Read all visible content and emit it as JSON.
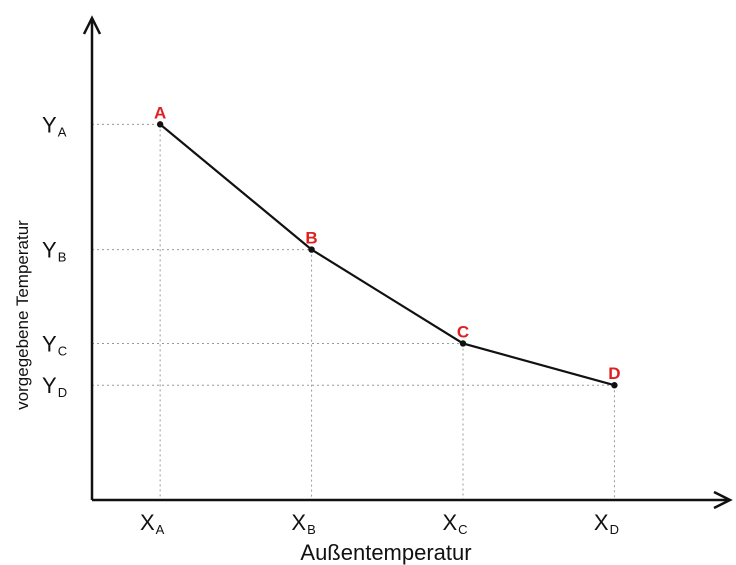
{
  "chart_data": {
    "type": "line",
    "xlabel": "Außentemperatur",
    "ylabel": "vorgegebene Temperatur",
    "x_ticks": [
      {
        "main": "X",
        "sub": "A"
      },
      {
        "main": "X",
        "sub": "B"
      },
      {
        "main": "X",
        "sub": "C"
      },
      {
        "main": "X",
        "sub": "D"
      }
    ],
    "y_ticks": [
      {
        "main": "Y",
        "sub": "A"
      },
      {
        "main": "Y",
        "sub": "B"
      },
      {
        "main": "Y",
        "sub": "C"
      },
      {
        "main": "Y",
        "sub": "D"
      }
    ],
    "points": [
      {
        "label": "A",
        "x": 1,
        "y": 3.6
      },
      {
        "label": "B",
        "x": 2,
        "y": 2.4
      },
      {
        "label": "C",
        "x": 3,
        "y": 1.5
      },
      {
        "label": "D",
        "x": 4,
        "y": 1.1
      }
    ],
    "xlim": [
      0.55,
      4.75
    ],
    "ylim": [
      0,
      4.6
    ],
    "grid": "dotted guides from points to axes",
    "colors": {
      "line": "#111111",
      "point_label": "#e02020",
      "guide": "#999999"
    }
  }
}
